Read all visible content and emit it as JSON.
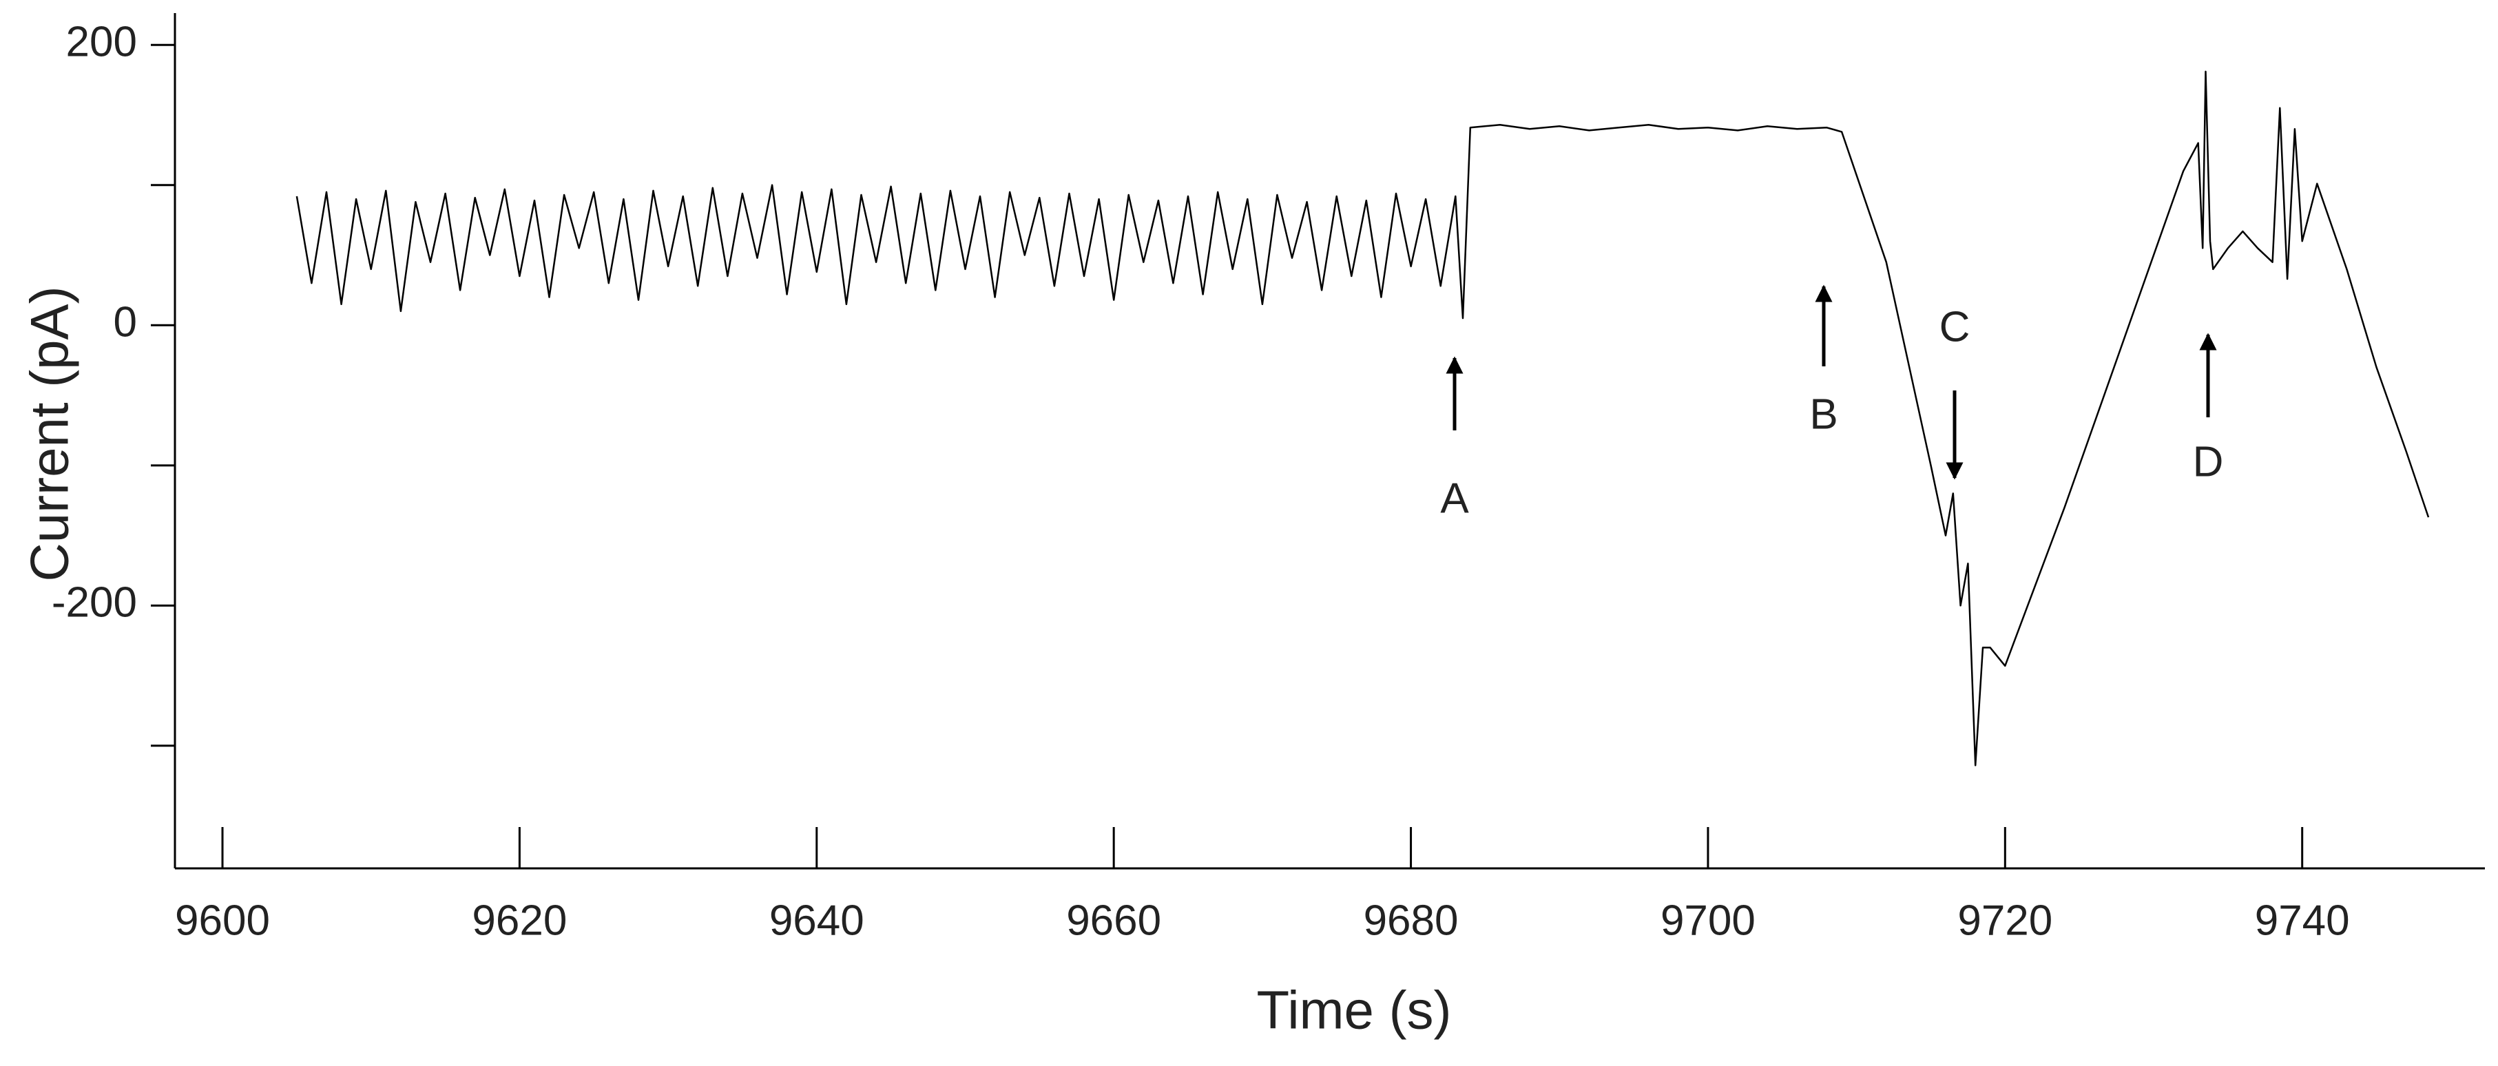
{
  "chart_data": {
    "type": "line",
    "xlabel": "Time (s)",
    "ylabel": "Current (pA)",
    "x": [
      9605,
      9606,
      9607,
      9608,
      9609,
      9610,
      9611,
      9612,
      9613,
      9614,
      9615,
      9616,
      9617,
      9618,
      9619,
      9620,
      9621,
      9622,
      9623,
      9624,
      9625,
      9626,
      9627,
      9628,
      9629,
      9630,
      9631,
      9632,
      9633,
      9634,
      9635,
      9636,
      9637,
      9638,
      9639,
      9640,
      9641,
      9642,
      9643,
      9644,
      9645,
      9646,
      9647,
      9648,
      9649,
      9650,
      9651,
      9652,
      9653,
      9654,
      9655,
      9656,
      9657,
      9658,
      9659,
      9660,
      9661,
      9662,
      9663,
      9664,
      9665,
      9666,
      9667,
      9668,
      9669,
      9670,
      9671,
      9672,
      9673,
      9674,
      9675,
      9676,
      9677,
      9678,
      9679,
      9680,
      9681,
      9682,
      9683,
      9683.5,
      9684,
      9686,
      9688,
      9690,
      9692,
      9694,
      9696,
      9698,
      9700,
      9702,
      9704,
      9706,
      9708,
      9709,
      9712,
      9715,
      9716,
      9716.5,
      9717,
      9717.5,
      9718,
      9718.5,
      9719,
      9720,
      9724,
      9728,
      9732,
      9733,
      9733.3,
      9733.5,
      9733.8,
      9734,
      9735,
      9736,
      9737,
      9738,
      9738.5,
      9739,
      9739.5,
      9740,
      9741,
      9743,
      9745,
      9747,
      9748.5
    ],
    "values": [
      92,
      30,
      95,
      15,
      90,
      40,
      96,
      10,
      88,
      45,
      94,
      25,
      91,
      50,
      97,
      35,
      89,
      20,
      93,
      55,
      95,
      30,
      90,
      18,
      96,
      42,
      92,
      28,
      98,
      35,
      94,
      48,
      100,
      22,
      95,
      38,
      97,
      15,
      93,
      45,
      99,
      30,
      94,
      25,
      96,
      40,
      92,
      20,
      95,
      50,
      91,
      28,
      94,
      35,
      90,
      18,
      93,
      45,
      89,
      30,
      92,
      22,
      95,
      40,
      90,
      15,
      93,
      48,
      88,
      25,
      92,
      35,
      89,
      20,
      94,
      42,
      90,
      28,
      92,
      5,
      141,
      143,
      140,
      142,
      139,
      141,
      143,
      140,
      141,
      139,
      142,
      140,
      141,
      138,
      45,
      -100,
      -150,
      -120,
      -200,
      -170,
      -314,
      -230,
      -230,
      -243,
      -130,
      -10,
      110,
      130,
      55,
      181,
      60,
      40,
      55,
      67,
      55,
      45,
      155,
      33,
      140,
      60,
      101,
      40,
      -30,
      -90,
      -137
    ],
    "color": "#000000",
    "xlim": [
      9596.8,
      9752.3
    ],
    "xticks": [
      9600,
      9620,
      9640,
      9660,
      9680,
      9700,
      9720,
      9740
    ],
    "ylim": [
      -387.5,
      222.7
    ],
    "yticks": [
      200,
      0,
      -200
    ],
    "yminorticks": [
      100,
      -100,
      -300
    ],
    "annotations": [
      "A",
      "B",
      "C",
      "D"
    ]
  }
}
